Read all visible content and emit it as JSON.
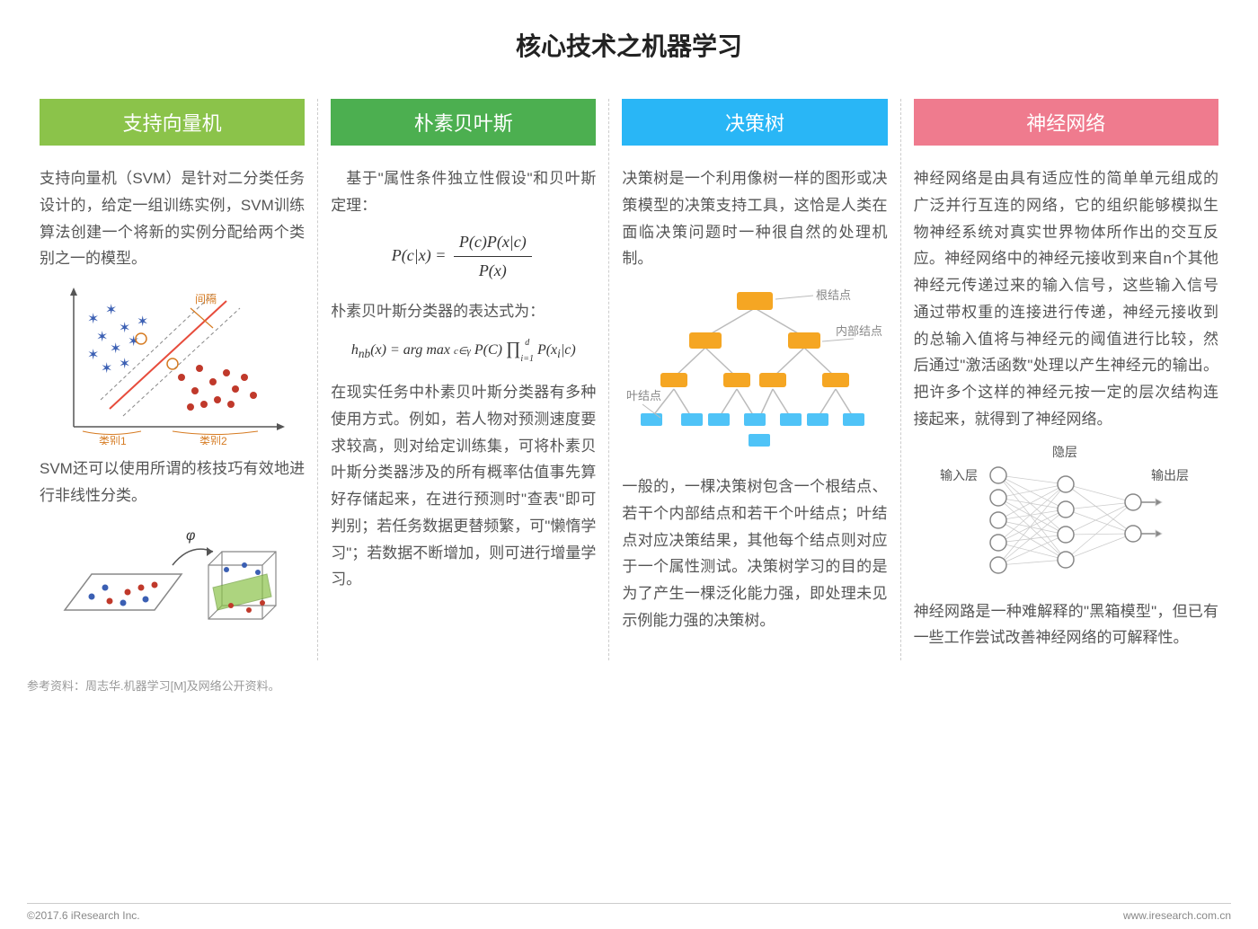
{
  "title": "核心技术之机器学习",
  "reference": "参考资料：周志华.机器学习[M]及网络公开资料。",
  "copyright": "©2017.6 iResearch Inc.",
  "site": "www.iresearch.com.cn",
  "columns": [
    {
      "header": "支持向量机",
      "header_color": "#8bc34a",
      "p1": "支持向量机（SVM）是针对二分类任务设计的，给定一组训练实例，SVM训练算法创建一个将新的实例分配给两个类别之一的模型。",
      "p2": "SVM还可以使用所谓的核技巧有效地进行非线性分类。",
      "svm_chart": {
        "type": "scatter-with-separator",
        "margin_label": "间隔",
        "class1_label": "类别1",
        "class2_label": "类别2",
        "class1_color": "#3b5fb3",
        "class2_color": "#c0392b",
        "line_color": "#e74c3c",
        "axis_color": "#555",
        "label_color": "#d67b22",
        "label_fontsize": 12
      },
      "kernel_diagram": {
        "phi_label": "φ",
        "dot_color_a": "#3b5fb3",
        "dot_color_b": "#c0392b",
        "plane_color": "#8bc34a",
        "border_color": "#888"
      }
    },
    {
      "header": "朴素贝叶斯",
      "header_color": "#4caf50",
      "p1": "基于\"属性条件独立性假设\"和贝叶斯定理：",
      "formula1_lhs": "P(c|x)  =",
      "formula1_num": "P(c)P(x|c)",
      "formula1_den": "P(x)",
      "p2": "朴素贝叶斯分类器的表达式为：",
      "formula2": "hₙᵦ(x) = arg max P(C) ∏ P(xᵢ|c)",
      "formula2_sub1": "c∈γ",
      "formula2_sub2": "i=1",
      "formula2_sup": "d",
      "p3": "在现实任务中朴素贝叶斯分类器有多种使用方式。例如，若人物对预测速度要求较高，则对给定训练集，可将朴素贝叶斯分类器涉及的所有概率估值事先算好存储起来，在进行预测时\"查表\"即可判别；若任务数据更替频繁，可\"懒惰学习\"；若数据不断增加，则可进行增量学习。"
    },
    {
      "header": "决策树",
      "header_color": "#29b6f6",
      "p1": "决策树是一个利用像树一样的图形或决策模型的决策支持工具，这恰是人类在面临决策问题时一种很自然的处理机制。",
      "p2": "一般的，一棵决策树包含一个根结点、若干个内部结点和若干个叶结点；叶结点对应决策结果，其他每个结点则对应于一个属性测试。决策树学习的目的是为了产生一棵泛化能力强，即处理未见示例能力强的决策树。",
      "tree": {
        "type": "tree",
        "root_label": "根结点",
        "internal_label": "内部结点",
        "leaf_label": "叶结点",
        "root_color": "#f5a623",
        "internal_color": "#f5a623",
        "leaf_color": "#4fc3f7",
        "edge_color": "#bbb",
        "label_color": "#888",
        "label_fontsize": 13
      }
    },
    {
      "header": "神经网络",
      "header_color": "#ef7b8e",
      "p1": "神经网络是由具有适应性的简单单元组成的广泛并行互连的网络，它的组织能够模拟生物神经系统对真实世界物体所作出的交互反应。神经网络中的神经元接收到来自n个其他神经元传递过来的输入信号，这些输入信号通过带权重的连接进行传递，神经元接收到的总输入值将与神经元的阈值进行比较，然后通过\"激活函数\"处理以产生神经元的输出。把许多个这样的神经元按一定的层次结构连接起来，就得到了神经网络。",
      "p2": "神经网路是一种难解释的\"黑箱模型\"，但已有一些工作尝试改善神经网络的可解释性。",
      "nn": {
        "type": "network",
        "input_label": "输入层",
        "hidden_label": "隐层",
        "output_label": "输出层",
        "node_stroke": "#888",
        "edge_color": "#bbb",
        "input_count": 5,
        "hidden_count": 4,
        "output_count": 2,
        "label_fontsize": 14
      }
    }
  ]
}
